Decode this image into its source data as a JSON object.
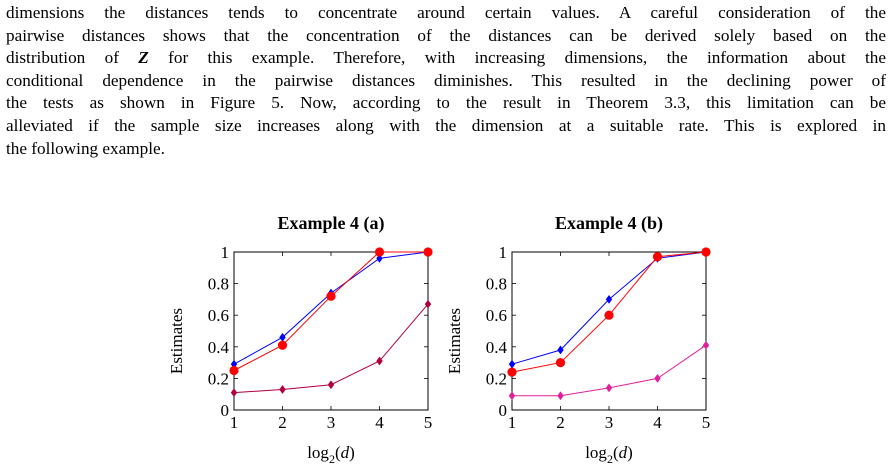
{
  "paragraph": {
    "lines": [
      "dimensions the distances tends to concentrate around certain values. A careful consideration of the",
      "pairwise distances shows that the concentration of the distances can be derived solely based on the",
      "distribution of Z for this example. Therefore, with increasing dimensions, the information about the",
      "conditional dependence in the pairwise distances diminishes. This resulted in the declining power of",
      "the tests as shown in Figure 5. Now, according to the result in Theorem 3.3, this limitation can be",
      "alleviated if the sample size increases along with the dimension at a suitable rate. This is explored in",
      "the following example."
    ]
  },
  "chart_data": [
    {
      "type": "line",
      "title": "Example 4 (a)",
      "xlabel": "log2(d)",
      "ylabel": "Estimates",
      "x": [
        1,
        2,
        3,
        4,
        5
      ],
      "xlim": [
        1,
        5
      ],
      "ylim": [
        0,
        1
      ],
      "xticks": [
        "1",
        "2",
        "3",
        "4",
        "5"
      ],
      "yticks": [
        "0",
        "0.2",
        "0.4",
        "0.6",
        "0.8",
        "1"
      ],
      "series": [
        {
          "color": "#0000ff",
          "marker": "diamond",
          "values": [
            0.29,
            0.46,
            0.74,
            0.96,
            1.0
          ]
        },
        {
          "color": "#ff0000",
          "marker": "circle",
          "values": [
            0.25,
            0.41,
            0.72,
            1.0,
            1.0
          ]
        },
        {
          "color": "#b0003a",
          "marker": "diamond",
          "values": [
            0.11,
            0.13,
            0.16,
            0.31,
            0.67
          ]
        }
      ]
    },
    {
      "type": "line",
      "title": "Example 4 (b)",
      "xlabel": "log2(d)",
      "ylabel": "Estimates",
      "x": [
        1,
        2,
        3,
        4,
        5
      ],
      "xlim": [
        1,
        5
      ],
      "ylim": [
        0,
        1
      ],
      "xticks": [
        "1",
        "2",
        "3",
        "4",
        "5"
      ],
      "yticks": [
        "0",
        "0.2",
        "0.4",
        "0.6",
        "0.8",
        "1"
      ],
      "series": [
        {
          "color": "#0000ff",
          "marker": "diamond",
          "values": [
            0.29,
            0.38,
            0.7,
            0.96,
            1.0
          ]
        },
        {
          "color": "#ff0000",
          "marker": "circle",
          "values": [
            0.24,
            0.3,
            0.6,
            0.97,
            1.0
          ]
        },
        {
          "color": "#e0209a",
          "marker": "diamond",
          "values": [
            0.09,
            0.09,
            0.14,
            0.2,
            0.41
          ]
        }
      ]
    }
  ]
}
